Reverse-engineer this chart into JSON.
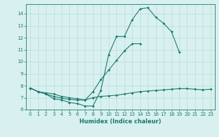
{
  "xlabel": "Humidex (Indice chaleur)",
  "x_values": [
    0,
    1,
    2,
    3,
    4,
    5,
    6,
    7,
    8,
    9,
    10,
    11,
    12,
    13,
    14,
    15,
    16,
    17,
    18,
    19,
    20,
    21,
    22,
    23
  ],
  "line1_y": [
    7.8,
    7.5,
    7.3,
    6.9,
    6.8,
    6.6,
    6.5,
    6.3,
    6.3,
    7.6,
    10.6,
    12.1,
    12.1,
    13.5,
    14.4,
    14.5,
    13.7,
    13.2,
    12.5,
    10.8,
    null,
    null,
    null,
    null
  ],
  "line2_y": [
    7.8,
    7.5,
    7.4,
    7.3,
    7.1,
    7.0,
    6.9,
    6.8,
    7.5,
    8.5,
    9.3,
    10.1,
    10.9,
    11.5,
    11.5,
    null,
    null,
    null,
    null,
    null,
    null,
    null,
    null,
    null
  ],
  "line3_y": [
    7.8,
    7.5,
    7.3,
    7.1,
    6.95,
    6.85,
    6.8,
    6.8,
    7.0,
    7.1,
    7.15,
    7.2,
    7.3,
    7.4,
    7.5,
    7.55,
    7.6,
    7.65,
    7.7,
    7.75,
    7.75,
    7.7,
    7.65,
    7.7
  ],
  "color": "#1a7a6e",
  "bg_color": "#d8f0ef",
  "grid_color": "#b8dcd8",
  "ylim": [
    6,
    14.8
  ],
  "ylim_display": [
    6,
    14
  ],
  "yticks": [
    6,
    7,
    8,
    9,
    10,
    11,
    12,
    13,
    14
  ],
  "xticks": [
    0,
    1,
    2,
    3,
    4,
    5,
    6,
    7,
    8,
    9,
    10,
    11,
    12,
    13,
    14,
    15,
    16,
    17,
    18,
    19,
    20,
    21,
    22,
    23
  ],
  "xlabel_fontsize": 6.0,
  "tick_fontsize": 5.0,
  "linewidth": 0.8,
  "markersize": 2.0
}
